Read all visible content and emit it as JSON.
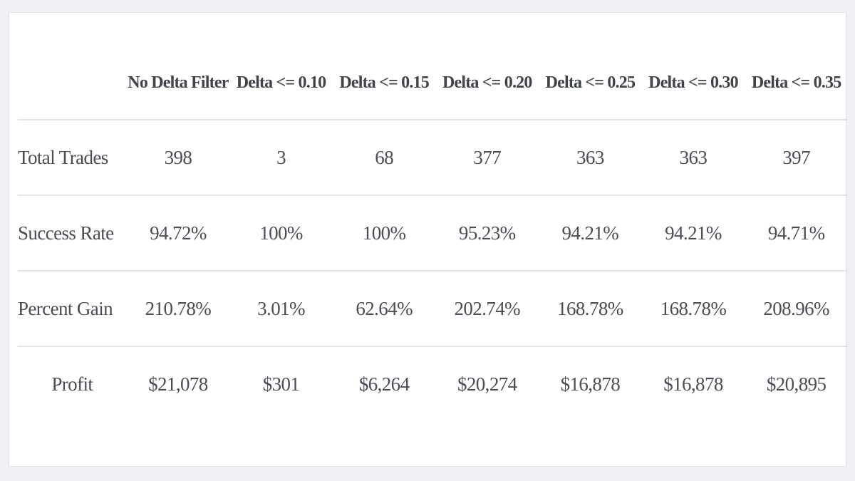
{
  "table": {
    "columns": [
      "",
      "No Delta Filter",
      "Delta <= 0.10",
      "Delta <= 0.15",
      "Delta <= 0.20",
      "Delta <= 0.25",
      "Delta <= 0.30",
      "Delta <= 0.35"
    ],
    "rows": [
      {
        "label": "Total Trades",
        "values": [
          "398",
          "3",
          "68",
          "377",
          "363",
          "363",
          "397"
        ]
      },
      {
        "label": "Success Rate",
        "values": [
          "94.72%",
          "100%",
          "100%",
          "95.23%",
          "94.21%",
          "94.21%",
          "94.71%"
        ]
      },
      {
        "label": "Percent Gain",
        "values": [
          "210.78%",
          "3.01%",
          "62.64%",
          "202.74%",
          "168.78%",
          "168.78%",
          "208.96%"
        ]
      },
      {
        "label": "Profit",
        "values": [
          "$21,078",
          "$301",
          "$6,264",
          "$20,274",
          "$16,878",
          "$16,878",
          "$20,895"
        ]
      }
    ]
  },
  "chart_data": {
    "type": "table",
    "columns": [
      "No Delta Filter",
      "Delta <= 0.10",
      "Delta <= 0.15",
      "Delta <= 0.20",
      "Delta <= 0.25",
      "Delta <= 0.30",
      "Delta <= 0.35"
    ],
    "rows": [
      {
        "name": "Total Trades",
        "values": [
          "398",
          "3",
          "68",
          "377",
          "363",
          "363",
          "397"
        ]
      },
      {
        "name": "Success Rate",
        "values": [
          "94.72%",
          "100%",
          "100%",
          "95.23%",
          "94.21%",
          "94.21%",
          "94.71%"
        ]
      },
      {
        "name": "Percent Gain",
        "values": [
          "210.78%",
          "3.01%",
          "62.64%",
          "202.74%",
          "168.78%",
          "168.78%",
          "208.96%"
        ]
      },
      {
        "name": "Profit",
        "values": [
          "$21,078",
          "$301",
          "$6,264",
          "$20,274",
          "$16,878",
          "$16,878",
          "$20,895"
        ]
      }
    ]
  },
  "colors": {
    "page_background": "#eef0f4",
    "card_background": "#ffffff",
    "text": "#4a4d55",
    "divider": "#e2e4e9"
  }
}
